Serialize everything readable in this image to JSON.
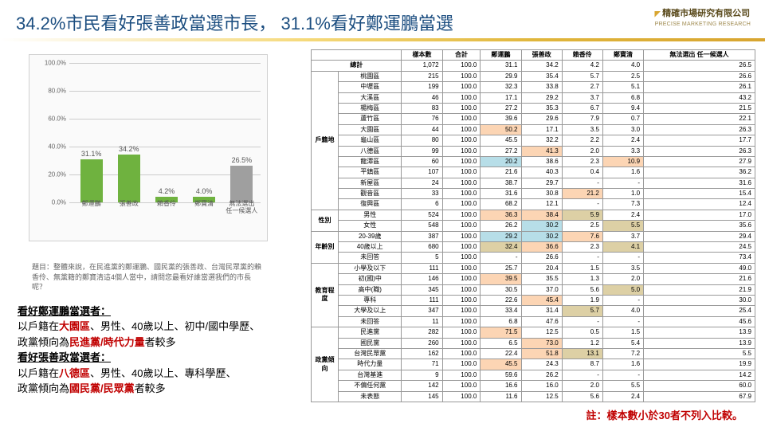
{
  "title": "34.2%市民看好張善政當選市長， 31.1%看好鄭運鵬當選",
  "logo": {
    "brand": "精確市場研究有限公司",
    "sub": "PRECISE MARKETING RESEARCH"
  },
  "chart": {
    "ylim": [
      0,
      100
    ],
    "ytick_step": 20,
    "y_labels": [
      "0.0%",
      "20.0%",
      "40.0%",
      "60.0%",
      "80.0%",
      "100.0%"
    ],
    "bg": "#fafafa",
    "grid_color": "#cccccc",
    "bars": [
      {
        "label": "鄭運鵬",
        "value": 31.1,
        "text": "31.1%",
        "color": "#6fb23f"
      },
      {
        "label": "張善政",
        "value": 34.2,
        "text": "34.2%",
        "color": "#6fb23f"
      },
      {
        "label": "賴香伶",
        "value": 4.2,
        "text": "4.2%",
        "color": "#6fb23f"
      },
      {
        "label": "鄭寶清",
        "value": 4.0,
        "text": "4.0%",
        "color": "#6fb23f"
      },
      {
        "label": "無法選出\n任一候選人",
        "value": 26.5,
        "text": "26.5%",
        "color": "#9f9f9f"
      }
    ]
  },
  "survey_q": "題目：整體來說，在民進黨的鄭運鵬、國民黨的張善政、台灣民眾黨的賴香伶、無黨籍的鄭寶清這4個人當中，請問您最看好誰當選我們的市長呢？",
  "notes": {
    "a_head": "看好鄭運鵬當選者：",
    "a_l1_a": "以戶籍在",
    "a_l1_red": "大園區",
    "a_l1_b": "、男性、40歲以上、初中/國中學歷、",
    "a_l2_a": "政黨傾向為",
    "a_l2_red": "民進黨/時代力量",
    "a_l2_b": "者較多",
    "b_head": "看好張善政當選者：",
    "b_l1_a": "以戶籍在",
    "b_l1_red": "八德區",
    "b_l1_b": "、男性、40歲以上、專科學歷、",
    "b_l2_a": "政黨傾向為",
    "b_l2_red": "國民黨/民眾黨",
    "b_l2_b": "者較多"
  },
  "table": {
    "headers": [
      "",
      "",
      "樣本數",
      "合計",
      "鄭運鵬",
      "張善政",
      "賴香伶",
      "鄭寶清",
      "無法選出\n任一候選人"
    ],
    "total": [
      "總計",
      "1,072",
      "100.0",
      "31.1",
      "34.2",
      "4.2",
      "4.0",
      "26.5"
    ],
    "hl": {
      "orange": "#fcd5b4",
      "cyan": "#b7dee8",
      "tan": "#ddd0a5",
      "grey": "#d9d9d9"
    },
    "groups": [
      {
        "name": "戶籍地",
        "rows": [
          [
            "桃園區",
            "215",
            "100.0",
            "29.9",
            "35.4",
            "5.7",
            "2.5",
            "26.6"
          ],
          [
            "中壢區",
            "199",
            "100.0",
            "32.3",
            "33.8",
            "2.7",
            "5.1",
            "26.1"
          ],
          [
            "大溪區",
            "46",
            "100.0",
            "17.1",
            "29.2",
            "3.7",
            "6.8",
            "43.2"
          ],
          [
            "楊梅區",
            "83",
            "100.0",
            "27.2",
            "35.3",
            "6.7",
            "9.4",
            "21.5"
          ],
          [
            "蘆竹區",
            "76",
            "100.0",
            "39.6",
            "29.6",
            "7.9",
            "0.7",
            "22.1"
          ],
          [
            "大園區",
            "44",
            "100.0",
            {
              "v": "50.2",
              "c": "orange"
            },
            "17.1",
            "3.5",
            "3.0",
            "26.3"
          ],
          [
            "龜山區",
            "80",
            "100.0",
            "45.5",
            "32.2",
            "2.2",
            "2.4",
            "17.7"
          ],
          [
            "八德區",
            "99",
            "100.0",
            "27.2",
            {
              "v": "41.3",
              "c": "orange"
            },
            "2.0",
            "3.3",
            "26.3"
          ],
          [
            "龍潭區",
            "60",
            "100.0",
            {
              "v": "20.2",
              "c": "cyan"
            },
            "38.6",
            "2.3",
            {
              "v": "10.9",
              "c": "orange"
            },
            "27.9"
          ],
          [
            "平鎮區",
            "107",
            "100.0",
            "21.6",
            "40.3",
            "0.4",
            "1.6",
            "36.2"
          ],
          [
            "新屋區",
            "24",
            "100.0",
            "38.7",
            "29.7",
            "-",
            "-",
            "31.6"
          ],
          [
            "觀音區",
            "33",
            "100.0",
            "31.6",
            "30.8",
            {
              "v": "21.2",
              "c": "orange"
            },
            "1.0",
            "15.4"
          ],
          [
            "復興區",
            "6",
            "100.0",
            "68.2",
            "12.1",
            "-",
            "7.3",
            "12.4"
          ]
        ]
      },
      {
        "name": "性別",
        "rows": [
          [
            "男性",
            "524",
            "100.0",
            {
              "v": "36.3",
              "c": "orange"
            },
            {
              "v": "38.4",
              "c": "orange"
            },
            {
              "v": "5.9",
              "c": "tan"
            },
            "2.4",
            "17.0"
          ],
          [
            "女性",
            "548",
            "100.0",
            "26.2",
            {
              "v": "30.2",
              "c": "cyan"
            },
            "2.5",
            {
              "v": "5.5",
              "c": "tan"
            },
            "35.6"
          ]
        ]
      },
      {
        "name": "年齡別",
        "rows": [
          [
            "20-39歲",
            "387",
            "100.0",
            {
              "v": "29.2",
              "c": "cyan"
            },
            {
              "v": "30.2",
              "c": "cyan"
            },
            {
              "v": "7.6",
              "c": "orange"
            },
            "3.7",
            "29.4"
          ],
          [
            "40歲以上",
            "680",
            "100.0",
            {
              "v": "32.4",
              "c": "tan"
            },
            {
              "v": "36.6",
              "c": "orange"
            },
            "2.3",
            {
              "v": "4.1",
              "c": "tan"
            },
            "24.5"
          ],
          [
            "未回答",
            "5",
            "100.0",
            "-",
            "26.6",
            "-",
            "-",
            "73.4"
          ]
        ]
      },
      {
        "name": "教育程度",
        "rows": [
          [
            "小學及以下",
            "111",
            "100.0",
            "25.7",
            "20.4",
            "1.5",
            "3.5",
            "49.0"
          ],
          [
            "初(國)中",
            "146",
            "100.0",
            {
              "v": "39.5",
              "c": "orange"
            },
            "35.5",
            "1.3",
            "2.0",
            "21.6"
          ],
          [
            "高中(職)",
            "345",
            "100.0",
            "30.5",
            "37.0",
            "5.6",
            {
              "v": "5.0",
              "c": "tan"
            },
            "21.9"
          ],
          [
            "專科",
            "111",
            "100.0",
            "22.6",
            {
              "v": "45.4",
              "c": "orange"
            },
            "1.9",
            "-",
            "30.0"
          ],
          [
            "大學及以上",
            "347",
            "100.0",
            "33.4",
            "31.4",
            {
              "v": "5.7",
              "c": "tan"
            },
            "4.0",
            "25.4"
          ],
          [
            "未回答",
            "11",
            "100.0",
            "6.8",
            "47.6",
            "-",
            "-",
            "45.6"
          ]
        ]
      },
      {
        "name": "政黨傾向",
        "rows": [
          [
            "民進黨",
            "282",
            "100.0",
            {
              "v": "71.5",
              "c": "orange"
            },
            "12.5",
            "0.5",
            "1.5",
            "13.9"
          ],
          [
            "國民黨",
            "260",
            "100.0",
            "6.5",
            {
              "v": "73.0",
              "c": "orange"
            },
            "1.2",
            "5.4",
            "13.9"
          ],
          [
            "台灣民眾黨",
            "162",
            "100.0",
            "22.4",
            {
              "v": "51.8",
              "c": "orange"
            },
            {
              "v": "13.1",
              "c": "tan"
            },
            "7.2",
            "5.5"
          ],
          [
            "時代力量",
            "71",
            "100.0",
            {
              "v": "45.5",
              "c": "orange"
            },
            "24.3",
            "8.7",
            "1.6",
            "19.9"
          ],
          [
            "台灣基進",
            "9",
            "100.0",
            "59.6",
            "26.2",
            "-",
            "-",
            "14.2"
          ],
          [
            "不偏任何黨",
            "142",
            "100.0",
            "16.6",
            "16.0",
            "2.0",
            "5.5",
            "60.0"
          ],
          [
            "未表態",
            "145",
            "100.0",
            "11.6",
            "12.5",
            "5.6",
            "2.4",
            "67.9"
          ]
        ]
      }
    ]
  },
  "footnote": "註：樣本數小於30者不列入比較。"
}
